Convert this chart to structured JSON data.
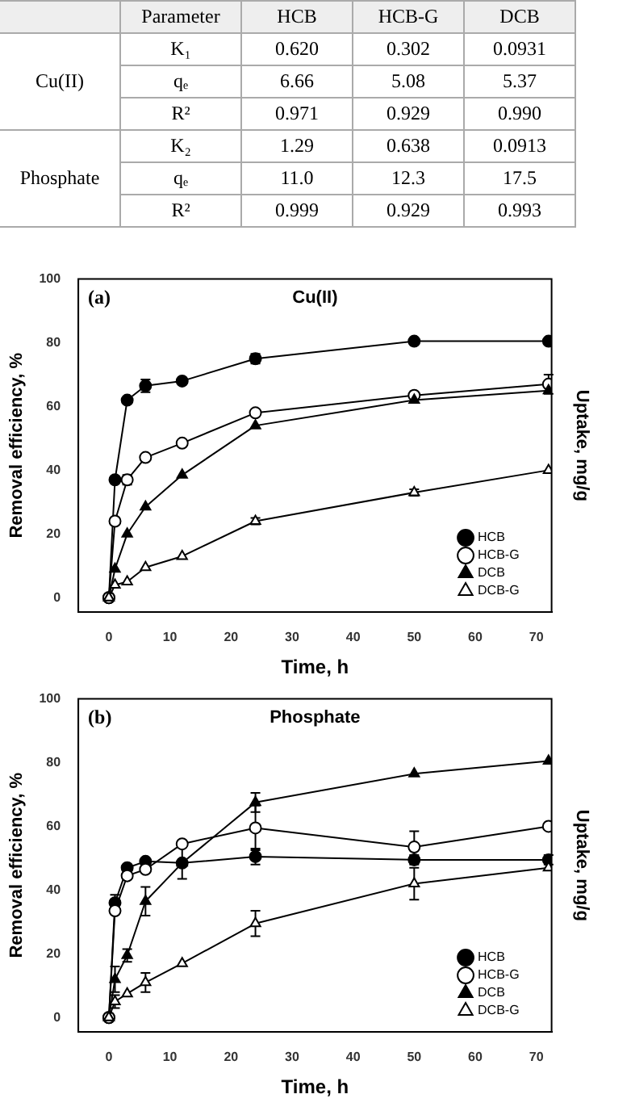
{
  "chart_data": [
    {
      "type": "other",
      "categories": [
        "HCB",
        "HCB-G",
        "DCB"
      ],
      "annotations": [
        "Parameter",
        "Cu(II)",
        "Phosphate"
      ],
      "y_categories": [
        "K₁",
        "qₑ",
        "R²",
        "K₂",
        "qₑ",
        "R²"
      ],
      "cell_labels": [
        [
          "0.620",
          "0.302",
          "0.0931"
        ],
        [
          "6.66",
          "5.08",
          "5.37"
        ],
        [
          "0.971",
          "0.929",
          "0.990"
        ],
        [
          "1.29",
          "0.638",
          "0.0913"
        ],
        [
          "11.0",
          "12.3",
          "17.5"
        ],
        [
          "0.999",
          "0.929",
          "0.993"
        ]
      ]
    },
    {
      "type": "line",
      "title": "Cu(II)",
      "xlabel": "Time, h",
      "ylabel": "Removal efficiency, %",
      "y2label": "Uptake, mg/g",
      "annotations": [
        "(a)"
      ],
      "x": [
        0,
        1,
        3,
        6,
        12,
        24,
        50,
        72
      ],
      "xlim": [
        -5,
        72.5
      ],
      "xticks": [
        0,
        10,
        20,
        30,
        40,
        50,
        60,
        70
      ],
      "ylim": [
        -4.5,
        100
      ],
      "yticks": [
        0,
        20,
        40,
        60,
        80,
        100
      ],
      "grid": false,
      "legend": "bottom right",
      "series": [
        {
          "name": "HCB",
          "color": "#000000",
          "marker": "circle",
          "values": [
            0,
            37,
            62,
            66.5,
            68,
            75,
            80.5,
            80.5
          ],
          "errors": [
            null,
            null,
            null,
            2,
            null,
            1.5,
            null,
            null
          ]
        },
        {
          "name": "HCB-G",
          "color": "#000000",
          "colors": [
            "#ffffff",
            "#ffffff",
            "#ffffff",
            "#ffffff",
            "#ffffff",
            "#ffffff",
            "#ffffff",
            "#ffffff"
          ],
          "marker": "circle",
          "values": [
            0,
            24,
            37,
            44,
            48.5,
            58,
            63.5,
            67
          ],
          "errors": [
            null,
            null,
            1.5,
            null,
            null,
            null,
            null,
            3
          ]
        },
        {
          "name": "DCB",
          "color": "#000000",
          "marker": "triangle",
          "values": [
            0,
            9,
            20,
            28.5,
            38.5,
            54,
            62,
            65
          ]
        },
        {
          "name": "DCB-G",
          "color": "#000000",
          "colors": [
            "#ffffff",
            "#ffffff",
            "#ffffff",
            "#ffffff",
            "#ffffff",
            "#ffffff",
            "#ffffff",
            "#ffffff"
          ],
          "marker": "triangle",
          "values": [
            0,
            4,
            5,
            9.5,
            13,
            24,
            33,
            40
          ],
          "errors": [
            null,
            null,
            null,
            null,
            null,
            1,
            1,
            null
          ]
        }
      ]
    },
    {
      "type": "line",
      "title": "Phosphate",
      "xlabel": "Time, h",
      "ylabel": "Removal efficiency, %",
      "y2label": "Uptake, mg/g",
      "annotations": [
        "(b)"
      ],
      "x": [
        0,
        1,
        3,
        6,
        12,
        24,
        50,
        72
      ],
      "xlim": [
        -5,
        72.5
      ],
      "xticks": [
        0,
        10,
        20,
        30,
        40,
        50,
        60,
        70
      ],
      "ylim": [
        -4.5,
        100
      ],
      "yticks": [
        0,
        20,
        40,
        60,
        80,
        100
      ],
      "grid": false,
      "legend": "bottom right",
      "series": [
        {
          "name": "HCB",
          "color": "#000000",
          "marker": "circle",
          "values": [
            0,
            36,
            47,
            49,
            48.5,
            50.5,
            49.5,
            49.5
          ],
          "errors": [
            null,
            2.5,
            null,
            null,
            null,
            2.5,
            1.5,
            1.5
          ]
        },
        {
          "name": "HCB-G",
          "color": "#000000",
          "colors": [
            "#ffffff",
            "#ffffff",
            "#ffffff",
            "#ffffff",
            "#ffffff",
            "#ffffff",
            "#ffffff",
            "#ffffff"
          ],
          "marker": "circle",
          "values": [
            0,
            33.5,
            44.5,
            46.5,
            54.5,
            59.5,
            53.5,
            60
          ],
          "errors": [
            null,
            null,
            null,
            null,
            null,
            7,
            5,
            null
          ]
        },
        {
          "name": "DCB",
          "color": "#000000",
          "marker": "triangle",
          "values": [
            0,
            12,
            19.5,
            36.5,
            48.5,
            67.5,
            76.5,
            80.5
          ],
          "errors": [
            null,
            4,
            2,
            4.5,
            5,
            3,
            null,
            null
          ]
        },
        {
          "name": "DCB-G",
          "color": "#000000",
          "colors": [
            "#ffffff",
            "#ffffff",
            "#ffffff",
            "#ffffff",
            "#ffffff",
            "#ffffff",
            "#ffffff",
            "#ffffff"
          ],
          "marker": "triangle",
          "values": [
            0,
            5,
            7.5,
            11,
            17,
            29.5,
            42,
            47
          ],
          "errors": [
            null,
            2,
            null,
            3,
            null,
            4,
            5,
            null
          ]
        }
      ]
    }
  ]
}
